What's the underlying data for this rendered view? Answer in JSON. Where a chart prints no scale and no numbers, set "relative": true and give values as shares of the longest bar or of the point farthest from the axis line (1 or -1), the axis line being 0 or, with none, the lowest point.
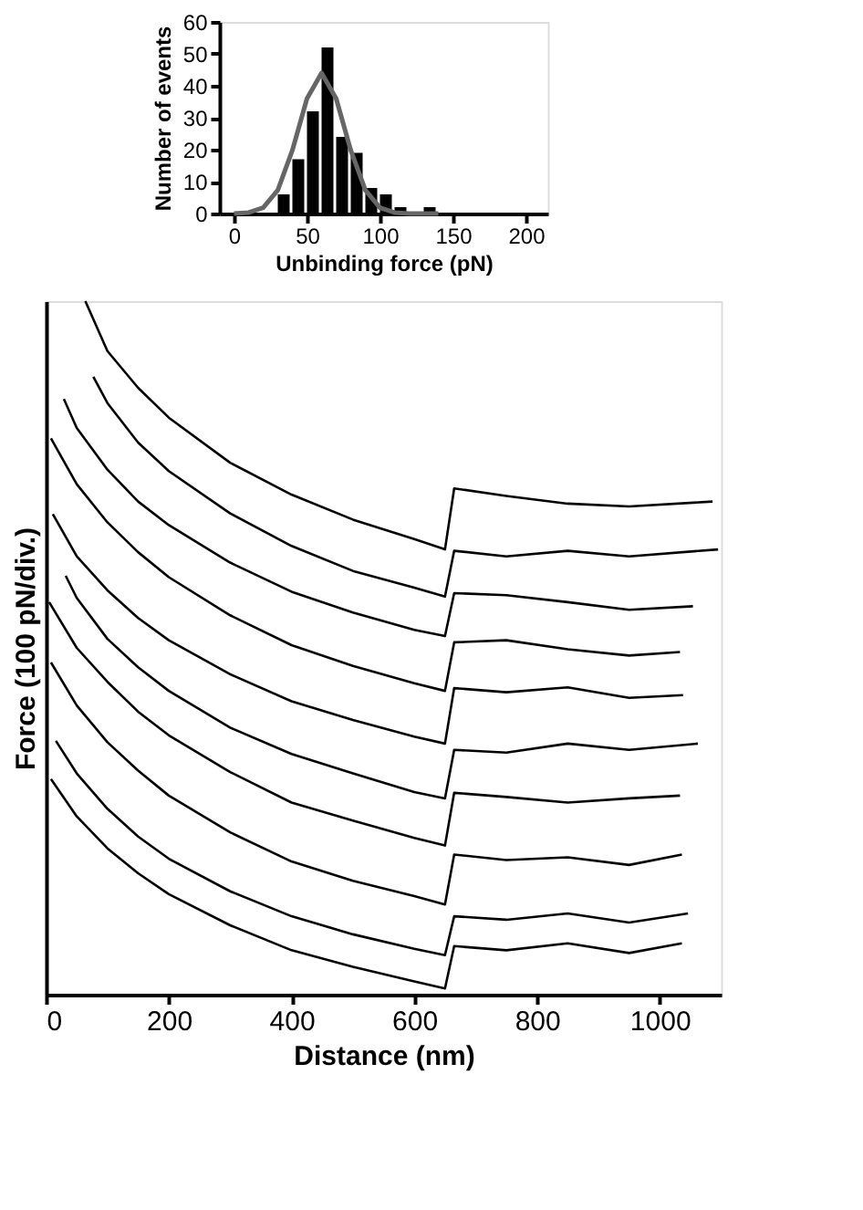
{
  "chart_data": [
    {
      "type": "line",
      "xlabel": "Distance (nm)",
      "ylabel": "Force (100 pN/div.)",
      "relative": true,
      "xlim": [
        0,
        1100
      ],
      "xticks": [
        0,
        200,
        400,
        600,
        800,
        1000
      ],
      "grid": false,
      "legend": false,
      "marker": "none",
      "line_style": "solid",
      "series": [
        {
          "color": "#000000",
          "x": [
            64,
            100,
            150,
            200,
            300,
            400,
            500,
            600,
            650,
            665,
            750,
            850,
            950,
            1086
          ],
          "values": [
            1.0,
            0.928,
            0.875,
            0.832,
            0.767,
            0.721,
            0.685,
            0.657,
            0.642,
            0.73,
            0.719,
            0.708,
            0.704,
            0.711
          ]
        },
        {
          "color": "#000000",
          "x": [
            77,
            100,
            150,
            200,
            300,
            400,
            500,
            600,
            650,
            665,
            750,
            850,
            950,
            1095
          ],
          "values": [
            0.891,
            0.853,
            0.796,
            0.755,
            0.694,
            0.647,
            0.611,
            0.587,
            0.574,
            0.64,
            0.632,
            0.64,
            0.632,
            0.642
          ]
        },
        {
          "color": "#000000",
          "x": [
            29,
            50,
            100,
            150,
            200,
            300,
            400,
            500,
            600,
            650,
            665,
            750,
            850,
            950,
            1054
          ],
          "values": [
            0.859,
            0.817,
            0.757,
            0.711,
            0.677,
            0.623,
            0.581,
            0.551,
            0.526,
            0.517,
            0.579,
            0.576,
            0.566,
            0.555,
            0.56
          ]
        },
        {
          "color": "#000000",
          "x": [
            8,
            50,
            100,
            150,
            200,
            300,
            400,
            500,
            600,
            650,
            665,
            750,
            850,
            950,
            1033
          ],
          "values": [
            0.802,
            0.736,
            0.681,
            0.638,
            0.602,
            0.547,
            0.504,
            0.474,
            0.449,
            0.438,
            0.508,
            0.511,
            0.498,
            0.489,
            0.494
          ]
        },
        {
          "color": "#000000",
          "x": [
            11,
            50,
            100,
            150,
            200,
            300,
            400,
            500,
            600,
            650,
            665,
            750,
            850,
            950,
            1038
          ],
          "values": [
            0.693,
            0.632,
            0.583,
            0.543,
            0.511,
            0.462,
            0.423,
            0.396,
            0.372,
            0.362,
            0.442,
            0.436,
            0.443,
            0.428,
            0.432
          ]
        },
        {
          "color": "#000000",
          "x": [
            32,
            50,
            100,
            150,
            200,
            300,
            400,
            500,
            600,
            650,
            665,
            750,
            850,
            950,
            1062
          ],
          "values": [
            0.604,
            0.572,
            0.513,
            0.472,
            0.438,
            0.385,
            0.347,
            0.319,
            0.292,
            0.283,
            0.353,
            0.349,
            0.362,
            0.353,
            0.362
          ]
        },
        {
          "color": "#000000",
          "x": [
            5,
            50,
            100,
            150,
            200,
            300,
            400,
            500,
            600,
            650,
            665,
            750,
            850,
            950,
            1033
          ],
          "values": [
            0.566,
            0.5,
            0.451,
            0.408,
            0.374,
            0.321,
            0.277,
            0.251,
            0.226,
            0.215,
            0.291,
            0.285,
            0.277,
            0.283,
            0.287
          ]
        },
        {
          "color": "#000000",
          "x": [
            8,
            50,
            100,
            150,
            200,
            300,
            400,
            500,
            600,
            650,
            665,
            750,
            850,
            950,
            1036
          ],
          "values": [
            0.479,
            0.417,
            0.364,
            0.323,
            0.287,
            0.234,
            0.192,
            0.164,
            0.142,
            0.13,
            0.202,
            0.194,
            0.198,
            0.187,
            0.202
          ]
        },
        {
          "color": "#000000",
          "x": [
            16,
            50,
            100,
            150,
            200,
            300,
            400,
            500,
            600,
            650,
            665,
            750,
            850,
            950,
            1046
          ],
          "values": [
            0.366,
            0.319,
            0.268,
            0.228,
            0.196,
            0.149,
            0.113,
            0.087,
            0.066,
            0.057,
            0.113,
            0.108,
            0.117,
            0.104,
            0.117
          ]
        },
        {
          "color": "#000000",
          "x": [
            8,
            50,
            100,
            150,
            200,
            300,
            400,
            500,
            600,
            650,
            665,
            750,
            850,
            950,
            1036
          ],
          "values": [
            0.311,
            0.257,
            0.211,
            0.175,
            0.145,
            0.1,
            0.064,
            0.04,
            0.019,
            0.009,
            0.07,
            0.064,
            0.074,
            0.06,
            0.074
          ]
        }
      ]
    },
    {
      "type": "histogram",
      "xlabel": "Unbinding force (pN)",
      "ylabel": "Number of events",
      "color": "#000000",
      "bins": [
        30,
        40,
        50,
        60,
        70,
        80,
        90,
        100,
        110,
        120,
        130,
        140
      ],
      "values": [
        6,
        17,
        32,
        52,
        24,
        19,
        8,
        6,
        2,
        0,
        2
      ],
      "xlim": [
        -10,
        215
      ],
      "xticks": [
        0,
        50,
        100,
        150,
        200
      ],
      "ylim": [
        0,
        60
      ],
      "yticks": [
        0,
        10,
        20,
        30,
        40,
        50,
        60
      ],
      "grid": false,
      "legend": false,
      "series": [
        {
          "type": "line",
          "color": "#666666",
          "x": [
            0,
            10,
            20,
            30,
            40,
            50,
            60,
            70,
            80,
            90,
            100,
            110,
            120,
            140
          ],
          "values": [
            0,
            0.3,
            1.8,
            7.3,
            19.8,
            36.0,
            44,
            36.0,
            19.8,
            7.3,
            1.8,
            0.3,
            0,
            0
          ]
        }
      ]
    }
  ]
}
